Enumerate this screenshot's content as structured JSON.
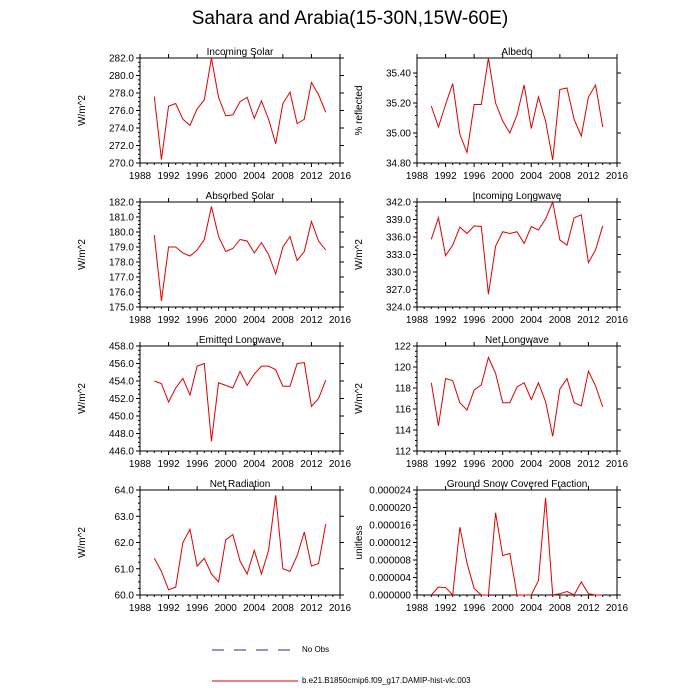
{
  "figure": {
    "title": "Sahara and Arabia(15-30N,15W-60E)",
    "legend": [
      {
        "label": "No Obs",
        "color": "#2b2b8c",
        "style": "dashed"
      },
      {
        "label": "b.e21.B1850cmip6.f09_g17.DAMIP-hist-vlc.003",
        "color": "#e00000",
        "style": "solid"
      }
    ]
  },
  "chart_data": [
    {
      "type": "line",
      "title": "Incoming Solar",
      "ylabel": "W/m^2",
      "xlabel": "",
      "xlim": [
        1988,
        2016
      ],
      "xticks": [
        "1988",
        "1992",
        "1996",
        "2000",
        "2004",
        "2008",
        "2012",
        "2016"
      ],
      "ylim": [
        270,
        282
      ],
      "yticks": [
        "270.0",
        "272.0",
        "274.0",
        "276.0",
        "278.0",
        "280.0",
        "282.0"
      ],
      "series": [
        {
          "name": "b.e21.B1850cmip6.f09_g17.DAMIP-hist-vlc.003",
          "color": "#e00000",
          "x": [
            1990,
            1991,
            1992,
            1993,
            1994,
            1995,
            1996,
            1997,
            1998,
            1999,
            2000,
            2001,
            2002,
            2003,
            2004,
            2005,
            2006,
            2007,
            2008,
            2009,
            2010,
            2011,
            2012,
            2013,
            2014
          ],
          "values": [
            277.6,
            270.4,
            276.5,
            276.8,
            275.0,
            274.3,
            276.2,
            277.2,
            282.0,
            277.5,
            275.4,
            275.5,
            277.0,
            277.5,
            275.1,
            277.1,
            275.0,
            272.2,
            276.8,
            278.1,
            274.5,
            275.0,
            279.2,
            277.8,
            275.8
          ]
        }
      ]
    },
    {
      "type": "line",
      "title": "Albedo",
      "ylabel": "% reflected",
      "xlabel": "",
      "xlim": [
        1988,
        2016
      ],
      "xticks": [
        "1988",
        "1992",
        "1996",
        "2000",
        "2004",
        "2008",
        "2012",
        "2016"
      ],
      "ylim": [
        34.8,
        35.5
      ],
      "yticks": [
        "34.80",
        "35.00",
        "35.20",
        "35.40"
      ],
      "series": [
        {
          "name": "b.e21.B1850cmip6.f09_g17.DAMIP-hist-vlc.003",
          "color": "#e00000",
          "x": [
            1990,
            1991,
            1992,
            1993,
            1994,
            1995,
            1996,
            1997,
            1998,
            1999,
            2000,
            2001,
            2002,
            2003,
            2004,
            2005,
            2006,
            2007,
            2008,
            2009,
            2010,
            2011,
            2012,
            2013,
            2014
          ],
          "values": [
            35.18,
            35.04,
            35.19,
            35.33,
            34.99,
            34.87,
            35.19,
            35.19,
            35.5,
            35.2,
            35.08,
            35.0,
            35.12,
            35.32,
            35.03,
            35.24,
            35.08,
            34.82,
            35.29,
            35.3,
            35.09,
            34.98,
            35.24,
            35.32,
            35.04
          ]
        }
      ]
    },
    {
      "type": "line",
      "title": "Absorbed Solar",
      "ylabel": "W/m^2",
      "xlabel": "",
      "xlim": [
        1988,
        2016
      ],
      "xticks": [
        "1988",
        "1992",
        "1996",
        "2000",
        "2004",
        "2008",
        "2012",
        "2016"
      ],
      "ylim": [
        175,
        182
      ],
      "yticks": [
        "175.0",
        "176.0",
        "177.0",
        "178.0",
        "179.0",
        "180.0",
        "181.0",
        "182.0"
      ],
      "series": [
        {
          "name": "b.e21.B1850cmip6.f09_g17.DAMIP-hist-vlc.003",
          "color": "#e00000",
          "x": [
            1990,
            1991,
            1992,
            1993,
            1994,
            1995,
            1996,
            1997,
            1998,
            1999,
            2000,
            2001,
            2002,
            2003,
            2004,
            2005,
            2006,
            2007,
            2008,
            2009,
            2010,
            2011,
            2012,
            2013,
            2014
          ],
          "values": [
            179.8,
            175.4,
            179.0,
            179.0,
            178.6,
            178.4,
            178.8,
            179.5,
            181.7,
            179.7,
            178.7,
            178.9,
            179.5,
            179.4,
            178.6,
            179.3,
            178.5,
            177.2,
            179.0,
            179.7,
            178.1,
            178.7,
            180.7,
            179.4,
            178.8
          ]
        }
      ]
    },
    {
      "type": "line",
      "title": "Incoming Longwave",
      "ylabel": "W/m^2",
      "xlabel": "",
      "xlim": [
        1988,
        2016
      ],
      "xticks": [
        "1988",
        "1992",
        "1996",
        "2000",
        "2004",
        "2008",
        "2012",
        "2016"
      ],
      "ylim": [
        324,
        342
      ],
      "yticks": [
        "324.0",
        "327.0",
        "330.0",
        "333.0",
        "336.0",
        "339.0",
        "342.0"
      ],
      "series": [
        {
          "name": "b.e21.B1850cmip6.f09_g17.DAMIP-hist-vlc.003",
          "color": "#e00000",
          "x": [
            1990,
            1991,
            1992,
            1993,
            1994,
            1995,
            1996,
            1997,
            1998,
            1999,
            2000,
            2001,
            2002,
            2003,
            2004,
            2005,
            2006,
            2007,
            2008,
            2009,
            2010,
            2011,
            2012,
            2013,
            2014
          ],
          "values": [
            335.6,
            339.3,
            332.8,
            334.6,
            337.7,
            336.6,
            337.9,
            337.8,
            326.2,
            334.4,
            336.9,
            336.6,
            336.9,
            334.9,
            337.8,
            337.2,
            339.1,
            342.2,
            335.5,
            334.6,
            339.3,
            339.8,
            331.6,
            333.8,
            337.9
          ]
        }
      ]
    },
    {
      "type": "line",
      "title": "Emitted Longwave",
      "ylabel": "W/m^2",
      "xlabel": "",
      "xlim": [
        1988,
        2016
      ],
      "xticks": [
        "1988",
        "1992",
        "1996",
        "2000",
        "2004",
        "2008",
        "2012",
        "2016"
      ],
      "ylim": [
        446,
        458
      ],
      "yticks": [
        "446.0",
        "448.0",
        "450.0",
        "452.0",
        "454.0",
        "456.0",
        "458.0"
      ],
      "series": [
        {
          "name": "b.e21.B1850cmip6.f09_g17.DAMIP-hist-vlc.003",
          "color": "#e00000",
          "x": [
            1990,
            1991,
            1992,
            1993,
            1994,
            1995,
            1996,
            1997,
            1998,
            1999,
            2000,
            2001,
            2002,
            2003,
            2004,
            2005,
            2006,
            2007,
            2008,
            2009,
            2010,
            2011,
            2012,
            2013,
            2014
          ],
          "values": [
            454.0,
            453.7,
            451.6,
            453.2,
            454.3,
            452.4,
            455.7,
            456.0,
            447.1,
            453.8,
            453.5,
            453.2,
            455.1,
            453.5,
            454.8,
            455.7,
            455.7,
            455.3,
            453.4,
            453.4,
            456.0,
            456.1,
            451.1,
            452.0,
            454.1
          ]
        }
      ]
    },
    {
      "type": "line",
      "title": "Net Longwave",
      "ylabel": "W/m^2",
      "xlabel": "",
      "xlim": [
        1988,
        2016
      ],
      "xticks": [
        "1988",
        "1992",
        "1996",
        "2000",
        "2004",
        "2008",
        "2012",
        "2016"
      ],
      "ylim": [
        112,
        122
      ],
      "yticks": [
        "112",
        "114",
        "116",
        "118",
        "120",
        "122"
      ],
      "series": [
        {
          "name": "b.e21.B1850cmip6.f09_g17.DAMIP-hist-vlc.003",
          "color": "#e00000",
          "x": [
            1990,
            1991,
            1992,
            1993,
            1994,
            1995,
            1996,
            1997,
            1998,
            1999,
            2000,
            2001,
            2002,
            2003,
            2004,
            2005,
            2006,
            2007,
            2008,
            2009,
            2010,
            2011,
            2012,
            2013,
            2014
          ],
          "values": [
            118.5,
            114.4,
            118.9,
            118.7,
            116.6,
            115.9,
            117.8,
            118.3,
            120.9,
            119.4,
            116.6,
            116.6,
            118.1,
            118.5,
            116.9,
            118.5,
            116.7,
            113.4,
            117.9,
            118.9,
            116.6,
            116.3,
            119.6,
            118.2,
            116.2
          ]
        }
      ]
    },
    {
      "type": "line",
      "title": "Net Radiation",
      "ylabel": "W/m^2",
      "xlabel": "",
      "xlim": [
        1988,
        2016
      ],
      "xticks": [
        "1988",
        "1992",
        "1996",
        "2000",
        "2004",
        "2008",
        "2012",
        "2016"
      ],
      "ylim": [
        60,
        64
      ],
      "yticks": [
        "60.0",
        "61.0",
        "62.0",
        "63.0",
        "64.0"
      ],
      "series": [
        {
          "name": "b.e21.B1850cmip6.f09_g17.DAMIP-hist-vlc.003",
          "color": "#e00000",
          "x": [
            1990,
            1991,
            1992,
            1993,
            1994,
            1995,
            1996,
            1997,
            1998,
            1999,
            2000,
            2001,
            2002,
            2003,
            2004,
            2005,
            2006,
            2007,
            2008,
            2009,
            2010,
            2011,
            2012,
            2013,
            2014
          ],
          "values": [
            61.4,
            60.9,
            60.2,
            60.3,
            62.0,
            62.5,
            61.1,
            61.4,
            60.8,
            60.5,
            62.1,
            62.3,
            61.3,
            60.8,
            61.7,
            60.8,
            61.7,
            63.8,
            61.0,
            60.9,
            61.5,
            62.4,
            61.1,
            61.2,
            62.7
          ]
        }
      ]
    },
    {
      "type": "line",
      "title": "Ground Snow Covered Fraction",
      "ylabel": "unitless",
      "xlabel": "",
      "xlim": [
        1988,
        2016
      ],
      "xticks": [
        "1988",
        "1992",
        "1996",
        "2000",
        "2004",
        "2008",
        "2012",
        "2016"
      ],
      "ylim": [
        0,
        2.4e-05
      ],
      "yticks": [
        "0.000000",
        "0.000004",
        "0.000008",
        "0.000012",
        "0.000016",
        "0.000020",
        "0.000024"
      ],
      "series": [
        {
          "name": "b.e21.B1850cmip6.f09_g17.DAMIP-hist-vlc.003",
          "color": "#e00000",
          "x": [
            1990,
            1991,
            1992,
            1993,
            1994,
            1995,
            1996,
            1997,
            1998,
            1999,
            2000,
            2001,
            2002,
            2003,
            2004,
            2005,
            2006,
            2007,
            2008,
            2009,
            2010,
            2011,
            2012,
            2013,
            2014
          ],
          "values": [
            0,
            1.8e-06,
            1.7e-06,
            0,
            1.55e-05,
            7.3e-06,
            1.5e-06,
            0,
            0,
            1.88e-05,
            9e-06,
            9.5e-06,
            0,
            0,
            0,
            3.3e-06,
            2.22e-05,
            0,
            3e-07,
            8e-07,
            0,
            3e-06,
            3e-07,
            0,
            0
          ]
        }
      ]
    }
  ]
}
